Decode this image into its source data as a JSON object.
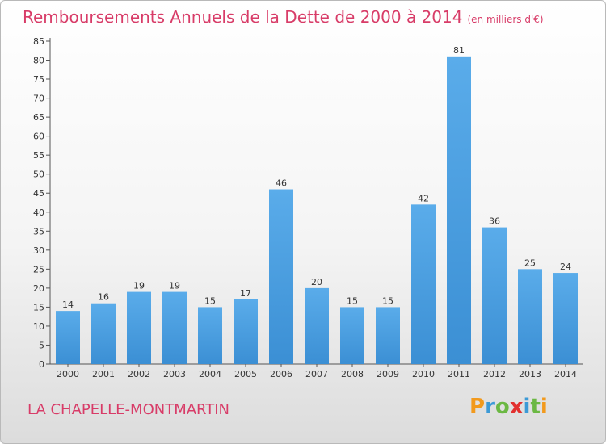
{
  "chart_data": {
    "type": "bar",
    "title": "Remboursements Annuels de la Dette de 2000 à 2014",
    "subtitle": "(en milliers d'€)",
    "xlabel": "",
    "ylabel": "",
    "categories": [
      "2000",
      "2001",
      "2002",
      "2003",
      "2004",
      "2005",
      "2006",
      "2007",
      "2008",
      "2009",
      "2010",
      "2011",
      "2012",
      "2013",
      "2014"
    ],
    "values": [
      14,
      16,
      19,
      19,
      15,
      17,
      46,
      20,
      15,
      15,
      42,
      81,
      36,
      25,
      24
    ],
    "ylim": [
      0,
      85
    ],
    "yticks": [
      0,
      5,
      10,
      15,
      20,
      25,
      30,
      35,
      40,
      45,
      50,
      55,
      60,
      65,
      70,
      75,
      80,
      85
    ],
    "grid": false,
    "legend": "none",
    "bar_color": "#3b8fd4",
    "bar_color_light": "#5aacea"
  },
  "commune": "LA CHAPELLE-MONTMARTIN",
  "logo": {
    "letters": [
      "P",
      "r",
      "o",
      "x",
      "i",
      "t",
      "i"
    ],
    "colors": [
      "#f29a1d",
      "#3c9ad6",
      "#6bb843",
      "#e2302f",
      "#3c9ad6",
      "#6bb843",
      "#f29a1d"
    ]
  },
  "colors": {
    "title": "#d83c68",
    "axis": "#555555"
  }
}
